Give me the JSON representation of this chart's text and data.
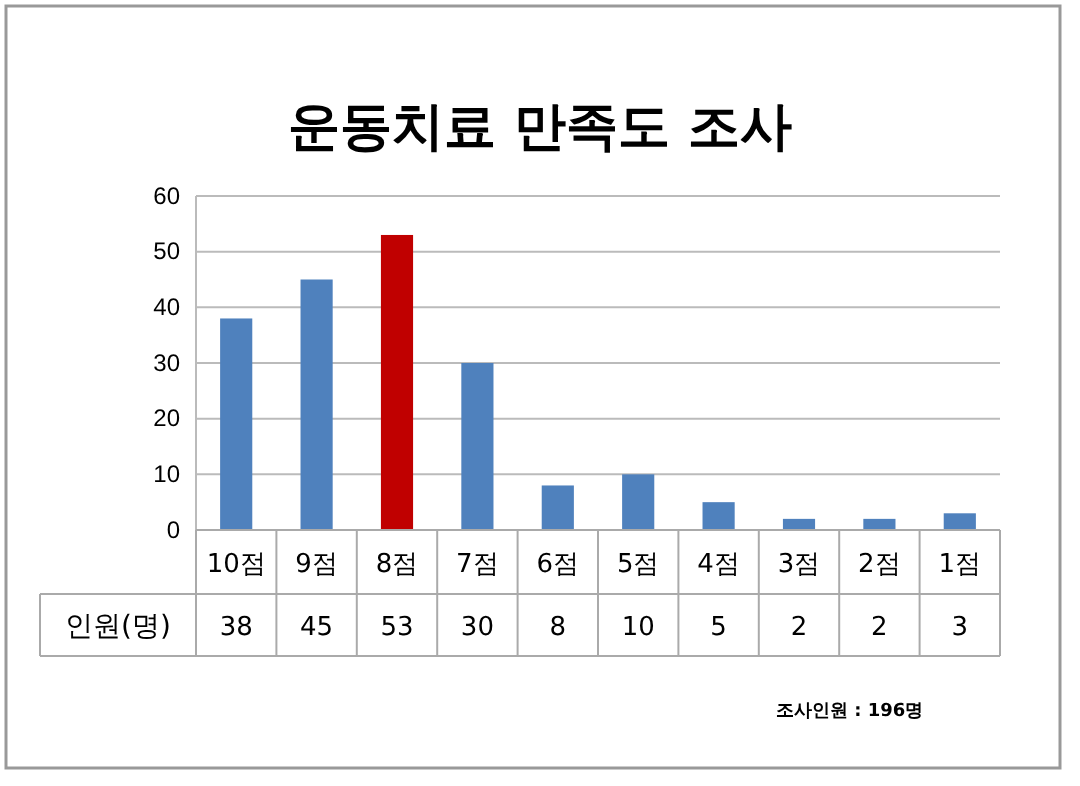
{
  "chart_data": {
    "type": "bar",
    "title": "운동치료 만족도 조사",
    "categories": [
      "10점",
      "9점",
      "8점",
      "7점",
      "6점",
      "5점",
      "4점",
      "3점",
      "2점",
      "1점"
    ],
    "series": [
      {
        "name": "인원(명)",
        "colors": [
          "#4f81bd",
          "#4f81bd",
          "#c00000",
          "#4f81bd",
          "#4f81bd",
          "#4f81bd",
          "#4f81bd",
          "#4f81bd",
          "#4f81bd",
          "#4f81bd"
        ],
        "values": [
          38,
          45,
          53,
          30,
          8,
          10,
          5,
          2,
          2,
          3
        ]
      }
    ],
    "ylim": [
      0,
      60
    ],
    "yticks": [
      0,
      10,
      20,
      30,
      40,
      50,
      60
    ],
    "grid": "y",
    "data_labels": true,
    "annotations": [
      "조사인원 : 196명"
    ]
  }
}
